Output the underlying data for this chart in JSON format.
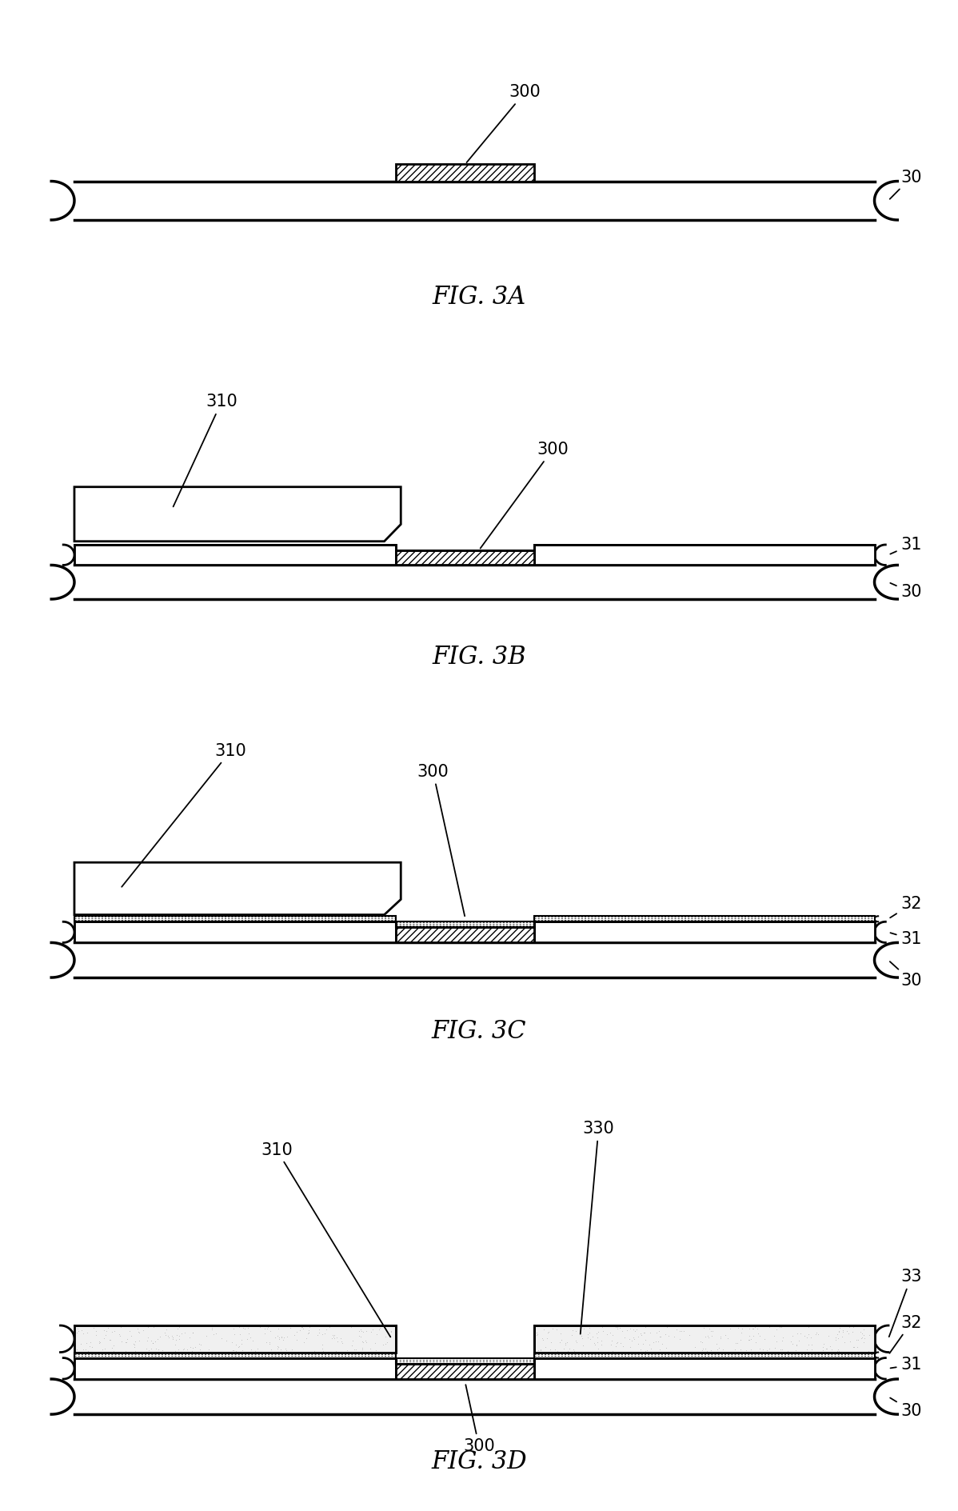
{
  "fig_width": 11.98,
  "fig_height": 18.89,
  "bg_color": "#ffffff",
  "figures": [
    "FIG. 3A",
    "FIG. 3B",
    "FIG. 3C",
    "FIG. 3D"
  ],
  "label_fontsize": 22,
  "ref_fontsize": 15,
  "board_lw": 2.5,
  "layer_lw": 2.0
}
